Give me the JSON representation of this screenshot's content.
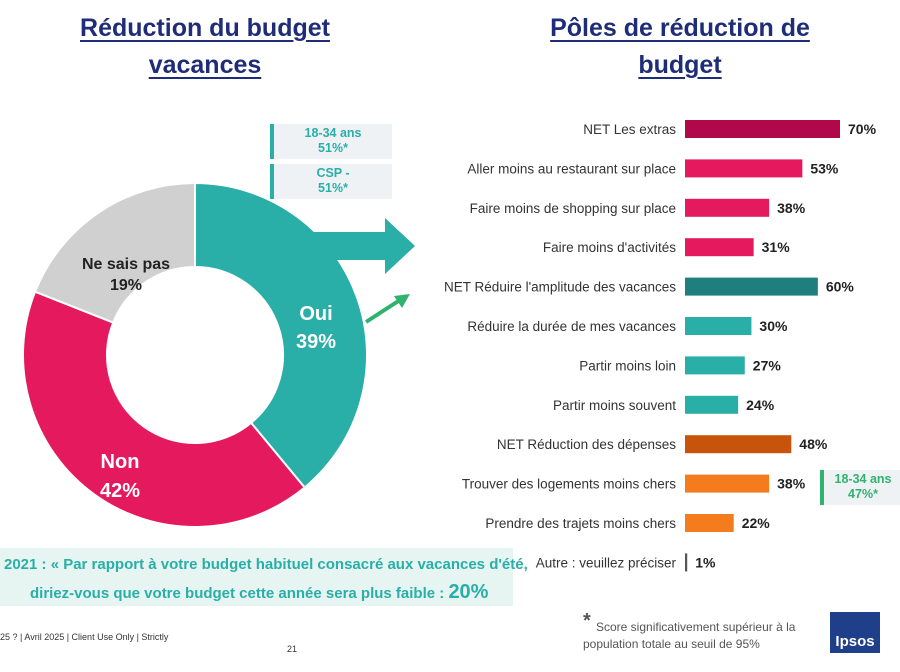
{
  "left_title": "Réduction du budget vacances",
  "right_title": "Pôles de réduction de budget",
  "donut": {
    "segments": [
      {
        "label": "Oui",
        "value": 39,
        "text": "39%",
        "color": "#2aaea8"
      },
      {
        "label": "Non",
        "value": 42,
        "text": "42%",
        "color": "#e5195e"
      },
      {
        "label": "Ne sais pas",
        "value": 19,
        "text": "19%",
        "color": "#d0d0d0"
      }
    ]
  },
  "callouts": {
    "age": "18-34 ans 51%*",
    "csp": "CSP - 51%*",
    "logements": "18-34 ans 47%*"
  },
  "question": {
    "line1": "2021 : « Par rapport à votre budget habituel consacré aux vacances d'été,",
    "line2": "diriez-vous que votre budget cette année sera plus faible :",
    "value": "20%"
  },
  "footer": {
    "source": "25 ? | Avril 2025 | Client Use Only | Strictly",
    "page": "21",
    "asterisk": "*",
    "note_line1": "Score significativement  supérieur à la",
    "note_line2": "population totale au seuil de 95%",
    "logo": "Ipsos"
  },
  "chart_data": {
    "type": "bar",
    "orientation": "horizontal",
    "xlim": [
      0,
      70
    ],
    "categories": [
      "NET Les extras",
      "Aller moins au restaurant sur place",
      "Faire moins de shopping sur place",
      "Faire moins d'activités",
      "NET Réduire l'amplitude des vacances",
      "Réduire la durée de mes vacances",
      "Partir moins loin",
      "Partir moins souvent",
      "NET Réduction des dépenses",
      "Trouver des logements moins chers",
      "Prendre des trajets moins chers",
      "Autre : veuillez préciser"
    ],
    "values": [
      70,
      53,
      38,
      31,
      60,
      30,
      27,
      24,
      48,
      38,
      22,
      1
    ],
    "value_labels": [
      "70%",
      "53%",
      "38%",
      "31%",
      "60%",
      "30%",
      "27%",
      "24%",
      "48%",
      "38%",
      "22%",
      "1%"
    ],
    "colors": [
      "#b0084a",
      "#e5195e",
      "#e5195e",
      "#e5195e",
      "#1f7f7f",
      "#2aaea8",
      "#2aaea8",
      "#2aaea8",
      "#c8540b",
      "#f47c1c",
      "#f47c1c",
      "#555555"
    ]
  }
}
